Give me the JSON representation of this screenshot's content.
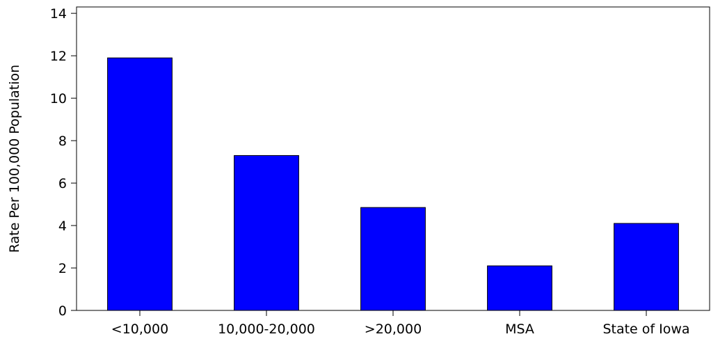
{
  "chart_data": {
    "type": "bar",
    "title": "",
    "xlabel": "",
    "ylabel": "Rate Per 100,000 Population",
    "categories": [
      "<10,000",
      "10,000-20,000",
      ">20,000",
      "MSA",
      "State of Iowa"
    ],
    "values": [
      11.9,
      7.3,
      4.85,
      2.1,
      4.1
    ],
    "ylim": [
      0,
      14.3
    ],
    "yticks": [
      "0",
      "2",
      "4",
      "6",
      "8",
      "10",
      "12",
      "14"
    ],
    "grid": false,
    "legend": "none",
    "bar_color": "#0000ff",
    "bar_edge_color": "#000000"
  }
}
